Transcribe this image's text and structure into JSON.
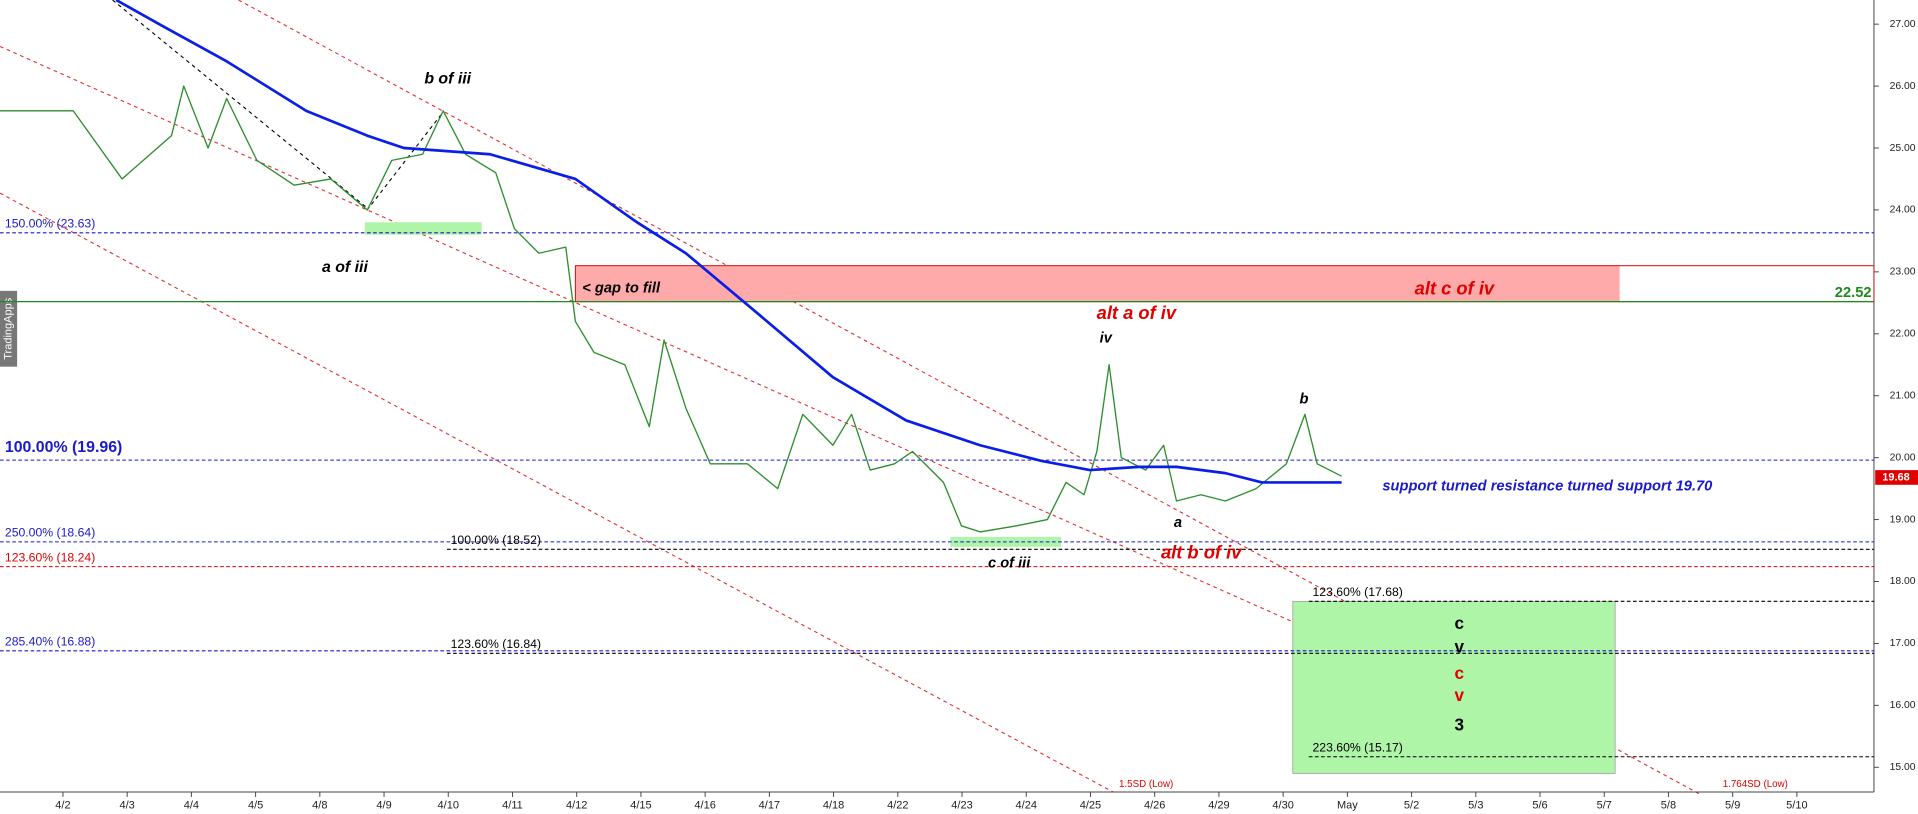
{
  "chart_data": {
    "type": "line",
    "watermark": "TradingApps",
    "categories": [
      "4/2",
      "4/3",
      "4/4",
      "4/5",
      "4/8",
      "4/9",
      "4/10",
      "4/11",
      "4/12",
      "4/15",
      "4/16",
      "4/17",
      "4/18",
      "4/22",
      "4/23",
      "4/24",
      "4/25",
      "4/26",
      "4/29",
      "4/30",
      "May",
      "5/2",
      "5/3",
      "5/6",
      "5/7",
      "5/8",
      "5/9",
      "5/10"
    ],
    "xlim": [
      -0.98,
      28.2
    ],
    "ylim": [
      14.66,
      27.39
    ],
    "yticks": [
      {
        "value": 15,
        "label": "15.00"
      },
      {
        "value": 16,
        "label": "16.00"
      },
      {
        "value": 17,
        "label": "17.00"
      },
      {
        "value": 18,
        "label": "18.00"
      },
      {
        "value": 19,
        "label": "19.00"
      },
      {
        "value": 20,
        "label": "20.00"
      },
      {
        "value": 21,
        "label": "21.00"
      },
      {
        "value": 22,
        "label": "22.00"
      },
      {
        "value": 23,
        "label": "23.00"
      },
      {
        "value": 24,
        "label": "24.00"
      },
      {
        "value": 25,
        "label": "25.00"
      },
      {
        "value": 26,
        "label": "26.00"
      },
      {
        "value": 27,
        "label": "27.00"
      }
    ],
    "series": [
      {
        "color": "#2f8f2f",
        "x": [
          -0.98,
          0.16,
          0.92,
          1.69,
          1.88,
          2.26,
          2.55,
          3.02,
          3.6,
          4.17,
          4.74,
          5.12,
          5.6,
          5.92,
          6.27,
          6.74,
          7.03,
          7.41,
          7.83,
          7.98,
          8.27,
          8.75,
          9.13,
          9.36,
          9.7,
          10.08,
          10.66,
          11.13,
          11.52,
          11.99,
          12.28,
          12.57,
          12.95,
          13.23,
          13.71,
          13.99,
          14.28,
          14.85,
          15.33,
          15.62,
          15.9,
          16.1,
          16.29,
          16.48,
          16.86,
          17.14,
          17.34,
          17.72,
          18.1,
          18.58,
          19.05,
          19.34,
          19.53,
          19.91
        ],
        "values": [
          25.6,
          25.6,
          24.5,
          25.2,
          26.0,
          25.0,
          25.8,
          24.8,
          24.4,
          24.5,
          24.0,
          24.8,
          24.9,
          25.6,
          24.9,
          24.6,
          23.7,
          23.3,
          23.4,
          22.2,
          21.7,
          21.5,
          20.5,
          21.9,
          20.8,
          19.9,
          19.9,
          19.5,
          20.7,
          20.2,
          20.7,
          19.8,
          19.9,
          20.1,
          19.6,
          18.9,
          18.8,
          18.9,
          19.0,
          19.6,
          19.4,
          20.1,
          21.5,
          20.0,
          19.8,
          20.2,
          19.3,
          19.4,
          19.3,
          19.5,
          19.9,
          20.7,
          19.9,
          19.7
        ]
      },
      {
        "color": "#0a1ee6",
        "x": [
          0.83,
          1.5,
          2.55,
          3.79,
          4.74,
          5.31,
          6.65,
          7.98,
          8.94,
          9.7,
          10.85,
          11.99,
          13.13,
          14.28,
          15.23,
          15.99,
          16.76,
          17.34,
          18.1,
          18.67,
          19.91
        ],
        "values": [
          27.39,
          27.0,
          26.4,
          25.6,
          25.2,
          25.0,
          24.9,
          24.5,
          23.8,
          23.3,
          22.3,
          21.3,
          20.6,
          20.2,
          19.95,
          19.8,
          19.85,
          19.85,
          19.75,
          19.6,
          19.6
        ]
      }
    ],
    "last_price": {
      "value": 19.68,
      "label": "19.68",
      "color": "#e00000"
    },
    "levels": [
      {
        "value": 23.63,
        "label": "150.00% (23.63)",
        "color": "#1a1acc",
        "style": "dashed"
      },
      {
        "value": 22.52,
        "label": "22.52",
        "color": "#1e8a1e",
        "style": "solid"
      },
      {
        "value": 19.96,
        "label": "100.00% (19.96)",
        "color": "#1a1acc",
        "style": "dashed"
      },
      {
        "value": 18.64,
        "label": "250.00% (18.64)",
        "color": "#1a1acc",
        "style": "dashed"
      },
      {
        "value": 18.24,
        "label": "123.60% (18.24)",
        "color": "#e00000",
        "style": "dashed"
      },
      {
        "value": 16.88,
        "label": "285.40% (16.88)",
        "color": "#1a1acc",
        "style": "dashed"
      },
      {
        "value": 18.52,
        "label": "100.00% (18.52)",
        "color": "#000000",
        "style": "dashed",
        "from": 5.98
      },
      {
        "value": 16.84,
        "label": "123.60% (16.84)",
        "color": "#000000",
        "style": "dashed",
        "from": 5.98
      },
      {
        "value": 17.68,
        "label": "123.60% (17.68)",
        "color": "#000000",
        "style": "dashed",
        "from": 19.4
      },
      {
        "value": 15.17,
        "label": "223.60% (15.17)",
        "color": "#000000",
        "style": "dashed",
        "from": 19.4
      }
    ],
    "zones": [
      {
        "x": [
          7.98,
          24.24
        ],
        "y": [
          22.52,
          23.1
        ],
        "color": "#ffaaaa"
      },
      {
        "x": [
          19.15,
          24.17
        ],
        "y": [
          14.9,
          17.68
        ],
        "color": "#aef5a8"
      },
      {
        "x": [
          4.7,
          6.52
        ],
        "y": [
          23.6,
          23.8
        ],
        "color": "#aef5a8"
      },
      {
        "x": [
          13.82,
          15.54
        ],
        "y": [
          18.56,
          18.72
        ],
        "color": "#aef5a8"
      }
    ],
    "annotations": [
      {
        "text": "b of iii",
        "color": "#000000"
      },
      {
        "text": "a of iii",
        "color": "#000000"
      },
      {
        "text": "< gap to fill",
        "color": "#000000"
      },
      {
        "text": "alt c of iv",
        "color": "#e00000"
      },
      {
        "text": "alt a of iv",
        "color": "#e00000"
      },
      {
        "text": "iv",
        "color": "#000000"
      },
      {
        "text": "b",
        "color": "#000000"
      },
      {
        "text": "a",
        "color": "#000000"
      },
      {
        "text": "alt b of iv",
        "color": "#e00000"
      },
      {
        "text": "c of iii",
        "color": "#000000"
      },
      {
        "text": "support turned resistance turned support 19.70",
        "color": "#1a1acc"
      },
      {
        "text": "c",
        "color": "#000000"
      },
      {
        "text": "v",
        "color": "#000000"
      },
      {
        "text": "c",
        "color": "#e00000"
      },
      {
        "text": "v",
        "color": "#e00000"
      },
      {
        "text": "3",
        "color": "#000000"
      },
      {
        "text": "1.5SD (Low)",
        "color": "#e00000"
      },
      {
        "text": "1.764SD (Low)",
        "color": "#e00000"
      }
    ]
  }
}
